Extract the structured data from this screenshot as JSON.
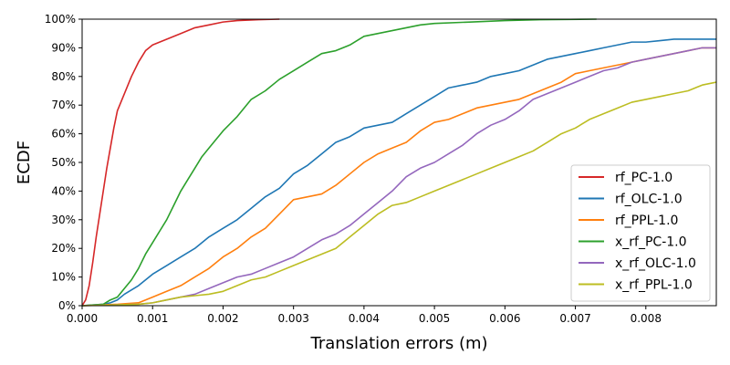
{
  "chart_data": {
    "type": "line",
    "xlabel": "Translation errors (m)",
    "ylabel": "ECDF",
    "xlim": [
      0.0,
      0.009
    ],
    "ylim": [
      0,
      100
    ],
    "x_ticks": [
      "0.000",
      "0.001",
      "0.002",
      "0.003",
      "0.004",
      "0.005",
      "0.006",
      "0.007",
      "0.008"
    ],
    "x_tick_values": [
      0.0,
      0.001,
      0.002,
      0.003,
      0.004,
      0.005,
      0.006,
      0.007,
      0.008
    ],
    "y_ticks": [
      "0%",
      "10%",
      "20%",
      "30%",
      "40%",
      "50%",
      "60%",
      "70%",
      "80%",
      "90%",
      "100%"
    ],
    "y_tick_values": [
      0,
      10,
      20,
      30,
      40,
      50,
      60,
      70,
      80,
      90,
      100
    ],
    "grid": false,
    "legend": "bottom-right",
    "series": [
      {
        "name": "rf_PC-1.0",
        "color": "#d62728",
        "points": [
          [
            0.0,
            0
          ],
          [
            5e-05,
            2
          ],
          [
            0.0001,
            7
          ],
          [
            0.00015,
            15
          ],
          [
            0.0002,
            24
          ],
          [
            0.00025,
            32
          ],
          [
            0.0003,
            40
          ],
          [
            0.00035,
            48
          ],
          [
            0.0004,
            55
          ],
          [
            0.00045,
            62
          ],
          [
            0.0005,
            68
          ],
          [
            0.0006,
            74
          ],
          [
            0.0007,
            80
          ],
          [
            0.0008,
            85
          ],
          [
            0.0009,
            89
          ],
          [
            0.001,
            91
          ],
          [
            0.0012,
            93
          ],
          [
            0.0014,
            95
          ],
          [
            0.0016,
            97
          ],
          [
            0.0018,
            98
          ],
          [
            0.002,
            99
          ],
          [
            0.0022,
            99.5
          ],
          [
            0.0025,
            99.8
          ],
          [
            0.0028,
            100
          ]
        ]
      },
      {
        "name": "rf_OLC-1.0",
        "color": "#1f77b4",
        "points": [
          [
            0.0,
            0
          ],
          [
            0.0003,
            0.5
          ],
          [
            0.0004,
            1
          ],
          [
            0.0005,
            2
          ],
          [
            0.0006,
            4
          ],
          [
            0.0008,
            7
          ],
          [
            0.001,
            11
          ],
          [
            0.0012,
            14
          ],
          [
            0.0014,
            17
          ],
          [
            0.0016,
            20
          ],
          [
            0.0018,
            24
          ],
          [
            0.002,
            27
          ],
          [
            0.0022,
            30
          ],
          [
            0.0024,
            34
          ],
          [
            0.0026,
            38
          ],
          [
            0.0028,
            41
          ],
          [
            0.003,
            46
          ],
          [
            0.0032,
            49
          ],
          [
            0.0034,
            53
          ],
          [
            0.0036,
            57
          ],
          [
            0.0038,
            59
          ],
          [
            0.004,
            62
          ],
          [
            0.0042,
            63
          ],
          [
            0.0044,
            64
          ],
          [
            0.0046,
            67
          ],
          [
            0.0048,
            70
          ],
          [
            0.005,
            73
          ],
          [
            0.0052,
            76
          ],
          [
            0.0054,
            77
          ],
          [
            0.0056,
            78
          ],
          [
            0.0058,
            80
          ],
          [
            0.006,
            81
          ],
          [
            0.0062,
            82
          ],
          [
            0.0064,
            84
          ],
          [
            0.0066,
            86
          ],
          [
            0.0068,
            87
          ],
          [
            0.007,
            88
          ],
          [
            0.0072,
            89
          ],
          [
            0.0074,
            90
          ],
          [
            0.0076,
            91
          ],
          [
            0.0078,
            92
          ],
          [
            0.008,
            92
          ],
          [
            0.0082,
            92.5
          ],
          [
            0.0084,
            93
          ],
          [
            0.0086,
            93
          ],
          [
            0.009,
            93
          ]
        ]
      },
      {
        "name": "rf_PPL-1.0",
        "color": "#ff7f0e",
        "points": [
          [
            0.0,
            0
          ],
          [
            0.0005,
            0.5
          ],
          [
            0.0008,
            1
          ],
          [
            0.001,
            3
          ],
          [
            0.0012,
            5
          ],
          [
            0.0014,
            7
          ],
          [
            0.0016,
            10
          ],
          [
            0.0018,
            13
          ],
          [
            0.002,
            17
          ],
          [
            0.0022,
            20
          ],
          [
            0.0024,
            24
          ],
          [
            0.0026,
            27
          ],
          [
            0.0028,
            32
          ],
          [
            0.003,
            37
          ],
          [
            0.0032,
            38
          ],
          [
            0.0034,
            39
          ],
          [
            0.0036,
            42
          ],
          [
            0.0038,
            46
          ],
          [
            0.004,
            50
          ],
          [
            0.0042,
            53
          ],
          [
            0.0044,
            55
          ],
          [
            0.0046,
            57
          ],
          [
            0.0048,
            61
          ],
          [
            0.005,
            64
          ],
          [
            0.0052,
            65
          ],
          [
            0.0054,
            67
          ],
          [
            0.0056,
            69
          ],
          [
            0.0058,
            70
          ],
          [
            0.006,
            71
          ],
          [
            0.0062,
            72
          ],
          [
            0.0064,
            74
          ],
          [
            0.0066,
            76
          ],
          [
            0.0068,
            78
          ],
          [
            0.007,
            81
          ],
          [
            0.0072,
            82
          ],
          [
            0.0074,
            83
          ],
          [
            0.0076,
            84
          ],
          [
            0.0078,
            85
          ],
          [
            0.008,
            86
          ],
          [
            0.0082,
            87
          ],
          [
            0.0084,
            88
          ],
          [
            0.0086,
            89
          ],
          [
            0.0088,
            90
          ],
          [
            0.009,
            90
          ]
        ]
      },
      {
        "name": "x_rf_PC-1.0",
        "color": "#2ca02c",
        "points": [
          [
            0.0,
            0
          ],
          [
            0.0003,
            0.5
          ],
          [
            0.0004,
            2
          ],
          [
            0.0005,
            3
          ],
          [
            0.0006,
            6
          ],
          [
            0.0007,
            9
          ],
          [
            0.0008,
            13
          ],
          [
            0.0009,
            18
          ],
          [
            0.001,
            22
          ],
          [
            0.0011,
            26
          ],
          [
            0.0012,
            30
          ],
          [
            0.0013,
            35
          ],
          [
            0.0014,
            40
          ],
          [
            0.0015,
            44
          ],
          [
            0.0016,
            48
          ],
          [
            0.0017,
            52
          ],
          [
            0.0018,
            55
          ],
          [
            0.0019,
            58
          ],
          [
            0.002,
            61
          ],
          [
            0.0022,
            66
          ],
          [
            0.0024,
            72
          ],
          [
            0.0026,
            75
          ],
          [
            0.0028,
            79
          ],
          [
            0.003,
            82
          ],
          [
            0.0032,
            85
          ],
          [
            0.0034,
            88
          ],
          [
            0.0036,
            89
          ],
          [
            0.0038,
            91
          ],
          [
            0.004,
            94
          ],
          [
            0.0042,
            95
          ],
          [
            0.0044,
            96
          ],
          [
            0.0046,
            97
          ],
          [
            0.0048,
            98
          ],
          [
            0.005,
            98.5
          ],
          [
            0.0055,
            99
          ],
          [
            0.006,
            99.5
          ],
          [
            0.0065,
            99.8
          ],
          [
            0.0073,
            100
          ]
        ]
      },
      {
        "name": "x_rf_OLC-1.0",
        "color": "#9467bd",
        "points": [
          [
            0.0,
            0
          ],
          [
            0.0008,
            0.5
          ],
          [
            0.001,
            1
          ],
          [
            0.0012,
            2
          ],
          [
            0.0014,
            3
          ],
          [
            0.0016,
            4
          ],
          [
            0.0018,
            6
          ],
          [
            0.002,
            8
          ],
          [
            0.0022,
            10
          ],
          [
            0.0024,
            11
          ],
          [
            0.0026,
            13
          ],
          [
            0.0028,
            15
          ],
          [
            0.003,
            17
          ],
          [
            0.0032,
            20
          ],
          [
            0.0034,
            23
          ],
          [
            0.0036,
            25
          ],
          [
            0.0038,
            28
          ],
          [
            0.004,
            32
          ],
          [
            0.0042,
            36
          ],
          [
            0.0044,
            40
          ],
          [
            0.0046,
            45
          ],
          [
            0.0048,
            48
          ],
          [
            0.005,
            50
          ],
          [
            0.0052,
            53
          ],
          [
            0.0054,
            56
          ],
          [
            0.0056,
            60
          ],
          [
            0.0058,
            63
          ],
          [
            0.006,
            65
          ],
          [
            0.0062,
            68
          ],
          [
            0.0064,
            72
          ],
          [
            0.0066,
            74
          ],
          [
            0.0068,
            76
          ],
          [
            0.007,
            78
          ],
          [
            0.0072,
            80
          ],
          [
            0.0074,
            82
          ],
          [
            0.0076,
            83
          ],
          [
            0.0078,
            85
          ],
          [
            0.008,
            86
          ],
          [
            0.0082,
            87
          ],
          [
            0.0084,
            88
          ],
          [
            0.0086,
            89
          ],
          [
            0.0088,
            90
          ],
          [
            0.009,
            90
          ]
        ]
      },
      {
        "name": "x_rf_PPL-1.0",
        "color": "#bcbd22",
        "points": [
          [
            0.0,
            0
          ],
          [
            0.0008,
            0.5
          ],
          [
            0.001,
            1
          ],
          [
            0.0012,
            2
          ],
          [
            0.0014,
            3
          ],
          [
            0.0016,
            3.5
          ],
          [
            0.0018,
            4
          ],
          [
            0.002,
            5
          ],
          [
            0.0022,
            7
          ],
          [
            0.0024,
            9
          ],
          [
            0.0026,
            10
          ],
          [
            0.0028,
            12
          ],
          [
            0.003,
            14
          ],
          [
            0.0032,
            16
          ],
          [
            0.0034,
            18
          ],
          [
            0.0036,
            20
          ],
          [
            0.0038,
            24
          ],
          [
            0.004,
            28
          ],
          [
            0.0042,
            32
          ],
          [
            0.0044,
            35
          ],
          [
            0.0046,
            36
          ],
          [
            0.0048,
            38
          ],
          [
            0.005,
            40
          ],
          [
            0.0052,
            42
          ],
          [
            0.0054,
            44
          ],
          [
            0.0056,
            46
          ],
          [
            0.0058,
            48
          ],
          [
            0.006,
            50
          ],
          [
            0.0062,
            52
          ],
          [
            0.0064,
            54
          ],
          [
            0.0066,
            57
          ],
          [
            0.0068,
            60
          ],
          [
            0.007,
            62
          ],
          [
            0.0072,
            65
          ],
          [
            0.0074,
            67
          ],
          [
            0.0076,
            69
          ],
          [
            0.0078,
            71
          ],
          [
            0.008,
            72
          ],
          [
            0.0082,
            73
          ],
          [
            0.0084,
            74
          ],
          [
            0.0086,
            75
          ],
          [
            0.0088,
            77
          ],
          [
            0.009,
            78
          ]
        ]
      }
    ]
  }
}
